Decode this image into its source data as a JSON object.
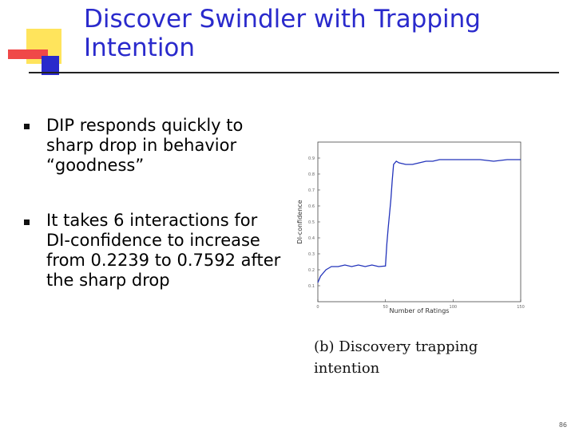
{
  "title": "Discover Swindler with Trapping Intention",
  "bullets": [
    "DIP responds quickly to sharp drop in behavior “goodness”",
    "It takes 6 interactions for DI-confidence to increase from 0.2239 to 0.7592 after the sharp drop"
  ],
  "figure": {
    "type": "line",
    "x_label": "Number of Ratings",
    "y_label": "DI-confidence",
    "x": [
      0,
      2,
      4,
      6,
      8,
      10,
      15,
      20,
      25,
      30,
      35,
      40,
      45,
      50,
      51,
      52,
      53,
      54,
      55,
      56,
      58,
      60,
      65,
      70,
      75,
      80,
      85,
      90,
      95,
      100,
      110,
      120,
      130,
      140,
      150
    ],
    "values": [
      0.12,
      0.16,
      0.18,
      0.2,
      0.21,
      0.22,
      0.22,
      0.23,
      0.22,
      0.23,
      0.22,
      0.23,
      0.22,
      0.2239,
      0.36,
      0.46,
      0.55,
      0.64,
      0.7592,
      0.86,
      0.88,
      0.87,
      0.86,
      0.86,
      0.87,
      0.88,
      0.88,
      0.89,
      0.89,
      0.89,
      0.89,
      0.89,
      0.88,
      0.89,
      0.89
    ],
    "color": "#2233bb",
    "xlim": [
      0,
      150
    ],
    "xticks": [
      0,
      50,
      100,
      150
    ],
    "ylim": [
      0,
      1
    ],
    "yticks": [
      0.1,
      0.2,
      0.3,
      0.4,
      0.5,
      0.6,
      0.7,
      0.8,
      0.9
    ],
    "caption": "(b) Discovery trapping intention"
  },
  "page_number": "86"
}
